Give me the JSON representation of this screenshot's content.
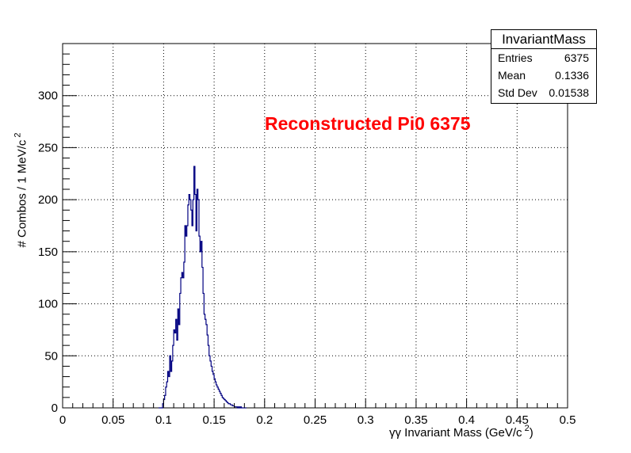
{
  "chart_data": {
    "type": "histogram",
    "title": "",
    "xlabel": "γγ Invariant Mass (GeV/c",
    "xlabel_sup": "2",
    "xlabel_close": ")",
    "ylabel": "# Combos / 1 MeV/c",
    "ylabel_sup": "2",
    "xlim": [
      0,
      0.5
    ],
    "ylim": [
      0,
      350
    ],
    "xticks": [
      "0",
      "0.05",
      "0.1",
      "0.15",
      "0.2",
      "0.25",
      "0.3",
      "0.35",
      "0.4",
      "0.45",
      "0.5"
    ],
    "yticks": [
      "0",
      "50",
      "100",
      "150",
      "200",
      "250",
      "300"
    ],
    "grid": true,
    "line_color": "#000080",
    "annotation": "Reconstructed Pi0 6375",
    "annotation_color": "#ff0000",
    "bin_width": 0.001,
    "bin_start": 0.095,
    "values": [
      0,
      0,
      0,
      0,
      4,
      8,
      12,
      20,
      25,
      35,
      30,
      50,
      35,
      45,
      60,
      75,
      72,
      85,
      65,
      95,
      80,
      110,
      125,
      130,
      125,
      140,
      175,
      165,
      175,
      195,
      205,
      200,
      190,
      175,
      200,
      232,
      205,
      170,
      210,
      200,
      165,
      150,
      160,
      135,
      110,
      90,
      85,
      80,
      70,
      60,
      50,
      45,
      40,
      35,
      32,
      28,
      25,
      22,
      20,
      18,
      16,
      14,
      12,
      10,
      9,
      8,
      7,
      6,
      5,
      4,
      4,
      3,
      3,
      2,
      2,
      1,
      1,
      1,
      0,
      1,
      0,
      1,
      0,
      0,
      0,
      0,
      0
    ],
    "stats": {
      "name": "InvariantMass",
      "entries_label": "Entries",
      "entries": "6375",
      "mean_label": "Mean",
      "mean": "0.1336",
      "std_label": "Std Dev",
      "std": "0.01538"
    }
  }
}
